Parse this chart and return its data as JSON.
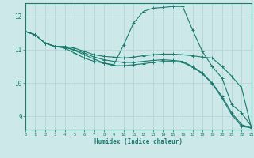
{
  "title": "",
  "xlabel": "Humidex (Indice chaleur)",
  "ylabel": "",
  "background_color": "#cce8e8",
  "grid_color": "#b0d0d0",
  "line_color": "#1a7a6e",
  "xlim": [
    0,
    23
  ],
  "ylim": [
    8.6,
    12.4
  ],
  "xticks": [
    0,
    1,
    2,
    3,
    4,
    5,
    6,
    7,
    8,
    9,
    10,
    11,
    12,
    13,
    14,
    15,
    16,
    17,
    18,
    19,
    20,
    21,
    22,
    23
  ],
  "yticks": [
    9,
    10,
    11,
    12
  ],
  "series": [
    {
      "x": [
        0,
        1,
        2,
        3,
        4,
        5,
        6,
        7,
        8,
        9,
        10,
        11,
        12,
        13,
        14,
        15,
        16,
        17,
        18,
        19,
        20,
        21,
        22,
        23
      ],
      "y": [
        11.55,
        11.45,
        11.2,
        11.1,
        11.05,
        10.9,
        10.75,
        10.65,
        10.6,
        10.55,
        11.15,
        11.8,
        12.15,
        12.25,
        12.27,
        12.3,
        12.3,
        11.6,
        10.95,
        10.5,
        10.15,
        9.35,
        9.1,
        8.7
      ]
    },
    {
      "x": [
        0,
        1,
        2,
        3,
        4,
        5,
        6,
        7,
        8,
        9,
        10,
        11,
        12,
        13,
        14,
        15,
        16,
        17,
        18,
        19,
        20,
        21,
        22,
        23
      ],
      "y": [
        11.55,
        11.45,
        11.2,
        11.1,
        11.1,
        11.05,
        10.95,
        10.85,
        10.8,
        10.78,
        10.75,
        10.78,
        10.82,
        10.85,
        10.87,
        10.87,
        10.85,
        10.82,
        10.78,
        10.75,
        10.5,
        10.2,
        9.85,
        8.65
      ]
    },
    {
      "x": [
        0,
        1,
        2,
        3,
        4,
        5,
        6,
        7,
        8,
        9,
        10,
        11,
        12,
        13,
        14,
        15,
        16,
        17,
        18,
        19,
        20,
        21,
        22,
        23
      ],
      "y": [
        11.55,
        11.45,
        11.2,
        11.1,
        11.08,
        11.0,
        10.9,
        10.78,
        10.7,
        10.65,
        10.62,
        10.62,
        10.65,
        10.68,
        10.7,
        10.68,
        10.65,
        10.5,
        10.3,
        10.0,
        9.6,
        9.1,
        8.75,
        8.65
      ]
    },
    {
      "x": [
        0,
        1,
        2,
        3,
        4,
        5,
        6,
        7,
        8,
        9,
        10,
        11,
        12,
        13,
        14,
        15,
        16,
        17,
        18,
        19,
        20,
        21,
        22,
        23
      ],
      "y": [
        11.55,
        11.45,
        11.2,
        11.1,
        11.08,
        10.98,
        10.85,
        10.72,
        10.6,
        10.52,
        10.52,
        10.55,
        10.58,
        10.62,
        10.65,
        10.65,
        10.62,
        10.48,
        10.28,
        9.98,
        9.55,
        9.05,
        8.7,
        8.65
      ]
    }
  ]
}
